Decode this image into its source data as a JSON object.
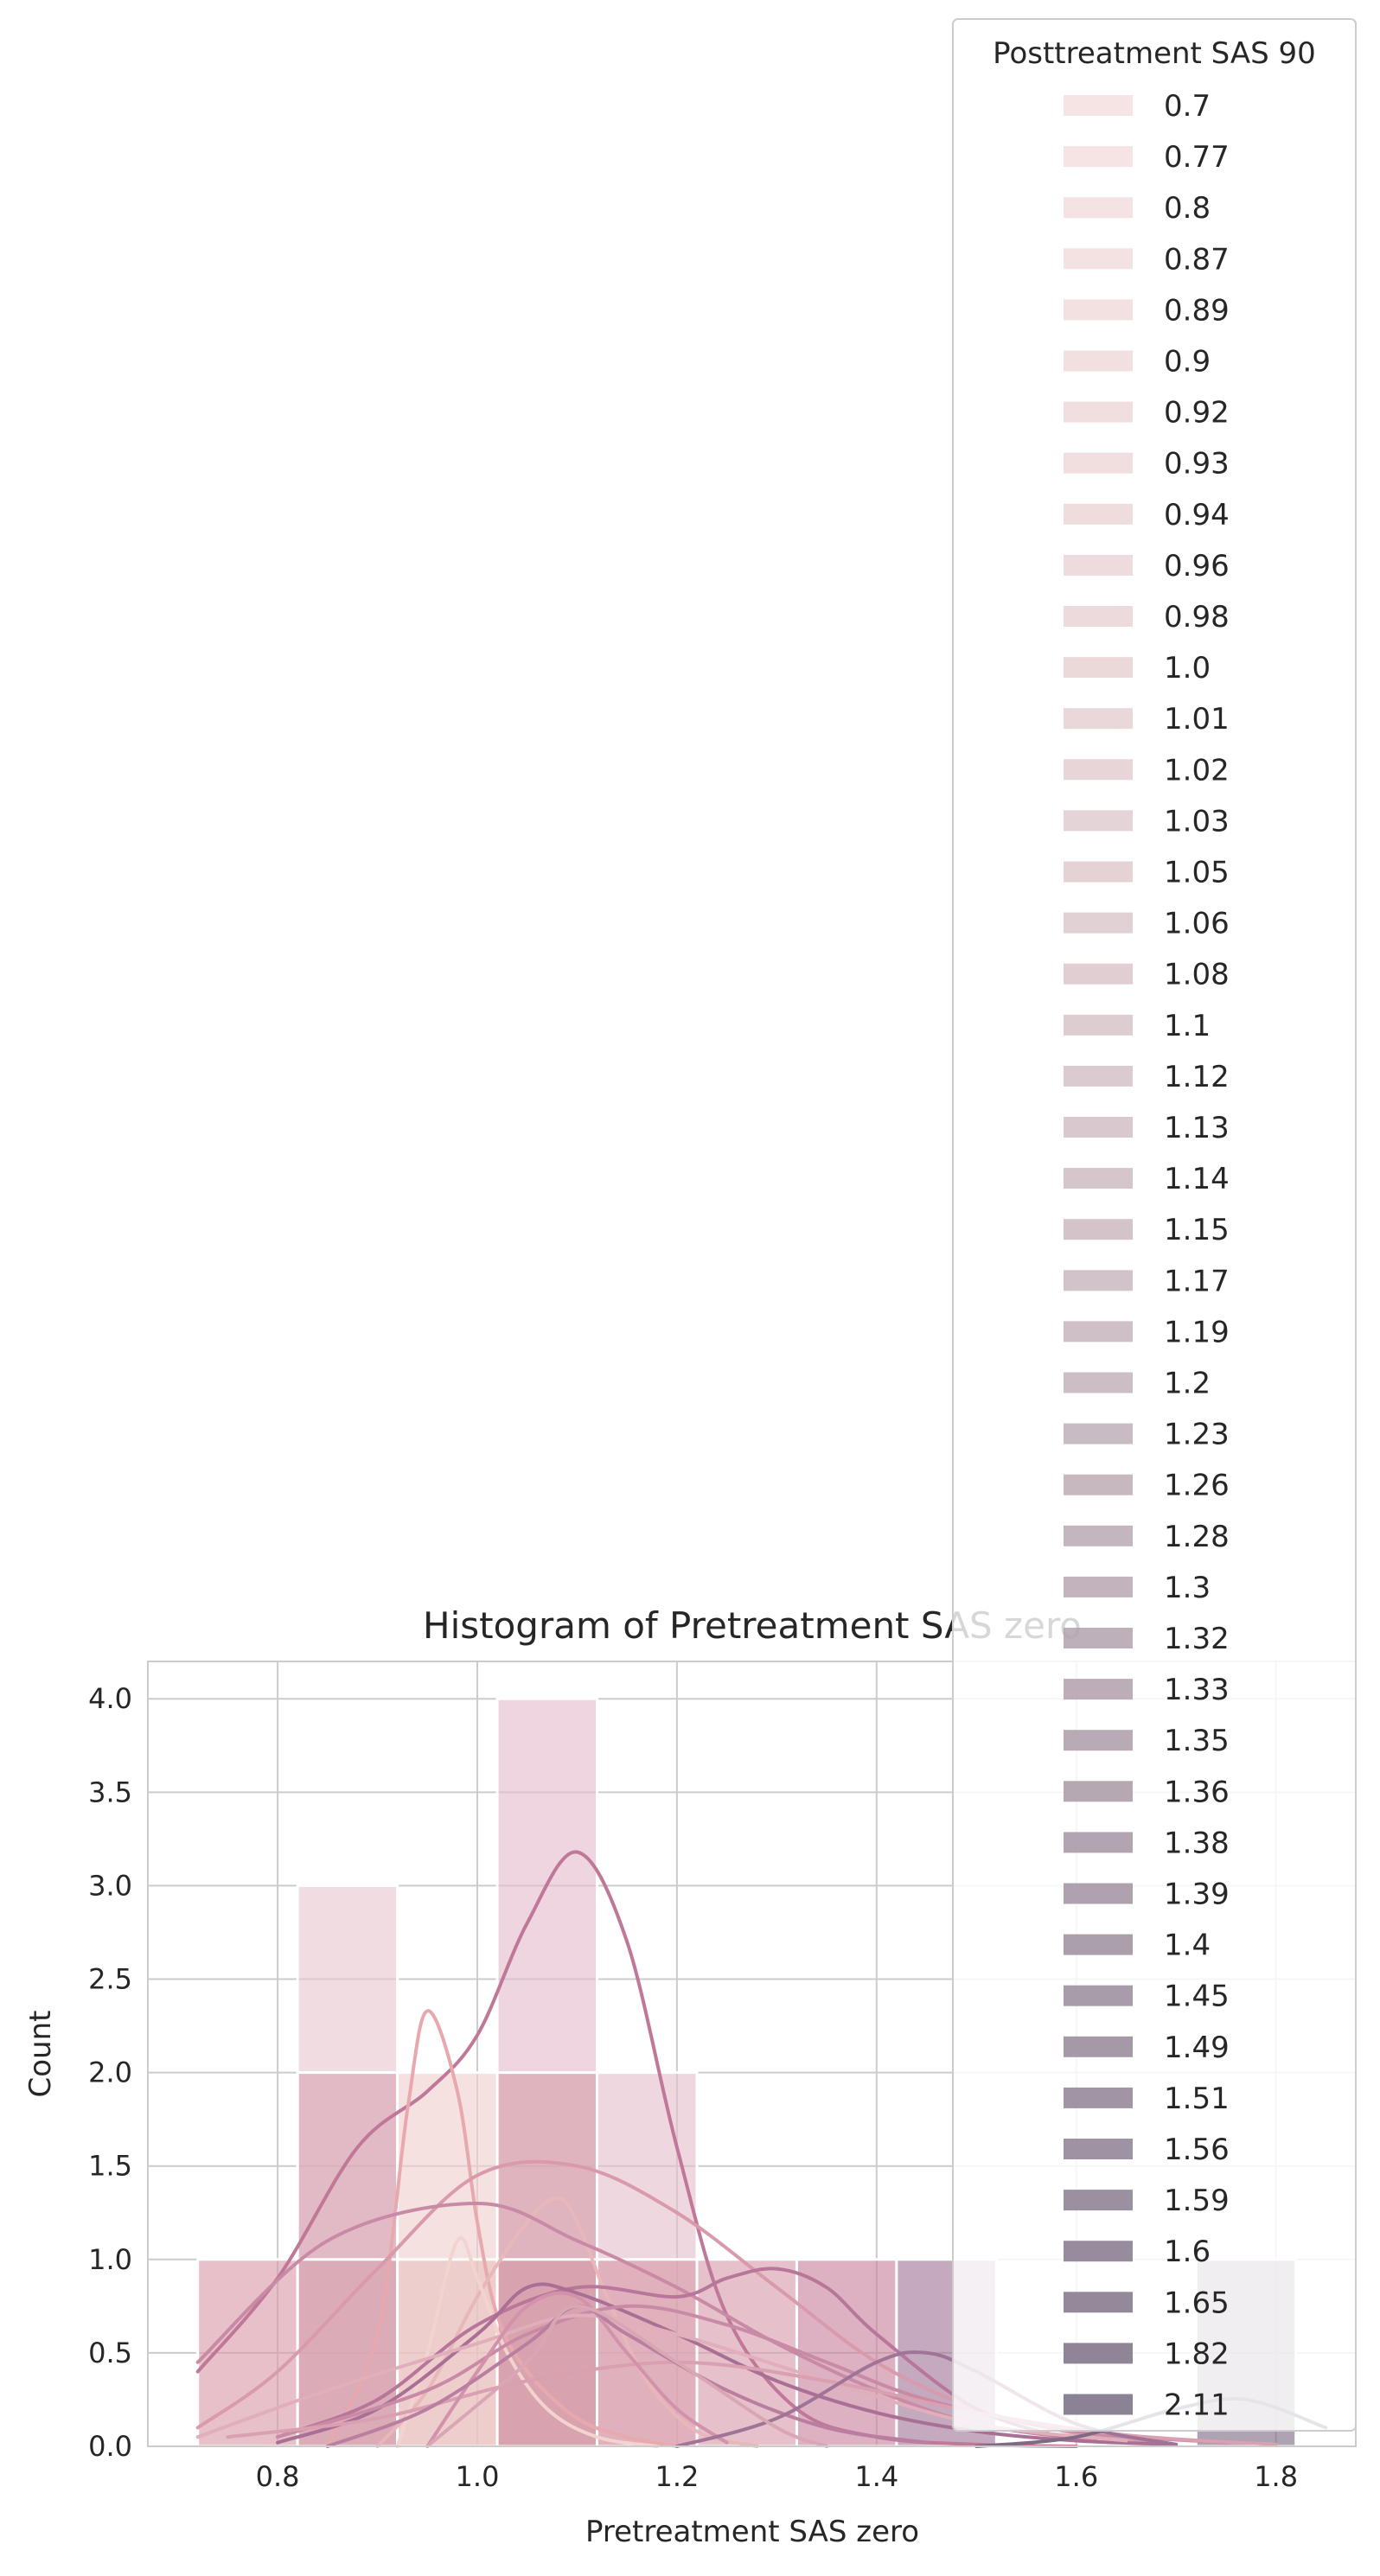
{
  "chart_data": {
    "type": "bar",
    "title": "Histogram of Pretreatment SAS zero",
    "xlabel": "Pretreatment SAS zero",
    "ylabel": "Count",
    "xlim": [
      0.67,
      1.88
    ],
    "ylim": [
      0,
      4.2
    ],
    "x_ticks": [
      "0.8",
      "1.0",
      "1.2",
      "1.4",
      "1.6",
      "1.8"
    ],
    "y_ticks": [
      "0.0",
      "0.5",
      "1.0",
      "1.5",
      "2.0",
      "2.5",
      "3.0",
      "3.5",
      "4.0"
    ],
    "grid": true,
    "legend": {
      "title": "Posttreatment SAS 90",
      "placement": "upper-right",
      "entries": [
        "0.7",
        "0.77",
        "0.8",
        "0.87",
        "0.89",
        "0.9",
        "0.92",
        "0.93",
        "0.94",
        "0.96",
        "0.98",
        "1.0",
        "1.01",
        "1.02",
        "1.03",
        "1.05",
        "1.06",
        "1.08",
        "1.1",
        "1.12",
        "1.13",
        "1.14",
        "1.15",
        "1.17",
        "1.19",
        "1.2",
        "1.23",
        "1.26",
        "1.28",
        "1.3",
        "1.32",
        "1.33",
        "1.35",
        "1.36",
        "1.38",
        "1.39",
        "1.4",
        "1.45",
        "1.49",
        "1.51",
        "1.56",
        "1.59",
        "1.6",
        "1.65",
        "1.82",
        "2.11"
      ]
    },
    "bars": [
      {
        "x0": 0.72,
        "x1": 0.82,
        "count": 1,
        "color": "#d89aa8"
      },
      {
        "x0": 0.82,
        "x1": 0.92,
        "count": 3,
        "color": "#e8c6cf"
      },
      {
        "x0": 0.82,
        "x1": 0.92,
        "count": 2,
        "color": "#d8a4b5"
      },
      {
        "x0": 0.82,
        "x1": 0.92,
        "count": 1,
        "color": "#d7a1ae"
      },
      {
        "x0": 0.92,
        "x1": 1.02,
        "count": 2,
        "color": "#f0cfcf"
      },
      {
        "x0": 0.92,
        "x1": 1.02,
        "count": 1,
        "color": "#e8c0c0"
      },
      {
        "x0": 1.02,
        "x1": 1.12,
        "count": 4,
        "color": "#e3bccb"
      },
      {
        "x0": 1.02,
        "x1": 1.12,
        "count": 2,
        "color": "#d7a0aa"
      },
      {
        "x0": 1.02,
        "x1": 1.12,
        "count": 1,
        "color": "#d49aa6"
      },
      {
        "x0": 1.12,
        "x1": 1.22,
        "count": 2,
        "color": "#e3bfcb"
      },
      {
        "x0": 1.12,
        "x1": 1.22,
        "count": 1,
        "color": "#d69aa8"
      },
      {
        "x0": 1.22,
        "x1": 1.32,
        "count": 1,
        "color": "#d79aa9"
      },
      {
        "x0": 1.32,
        "x1": 1.42,
        "count": 1,
        "color": "#c8809d"
      },
      {
        "x0": 1.42,
        "x1": 1.52,
        "count": 1,
        "color": "#9f7497"
      },
      {
        "x0": 1.72,
        "x1": 1.82,
        "count": 1,
        "color": "#7d6b84"
      }
    ],
    "kde_curves": [
      {
        "color": "#c07898",
        "x": [
          0.72,
          0.8,
          0.88,
          0.95,
          1.0,
          1.05,
          1.1,
          1.15,
          1.2,
          1.25,
          1.32,
          1.4,
          1.5,
          1.6
        ],
        "y": [
          0.4,
          0.9,
          1.6,
          1.9,
          2.2,
          2.8,
          3.18,
          2.7,
          1.6,
          0.7,
          0.2,
          0.05,
          0.01,
          0
        ]
      },
      {
        "color": "#e7a9ad",
        "x": [
          0.85,
          0.9,
          0.93,
          0.95,
          0.98,
          1.0,
          1.02,
          1.05,
          1.1,
          1.15,
          1.2
        ],
        "y": [
          0,
          0.6,
          1.8,
          2.33,
          1.9,
          1.2,
          0.7,
          0.4,
          0.15,
          0.05,
          0
        ]
      },
      {
        "color": "#e7b7ba",
        "x": [
          0.9,
          0.95,
          1.0,
          1.05,
          1.08,
          1.1,
          1.13,
          1.17,
          1.22,
          1.28
        ],
        "y": [
          0,
          0.3,
          0.8,
          1.2,
          1.33,
          1.2,
          0.8,
          0.35,
          0.08,
          0
        ]
      },
      {
        "color": "#f2d3d0",
        "x": [
          0.92,
          0.95,
          0.98,
          1.0,
          1.03,
          1.07,
          1.12,
          1.18
        ],
        "y": [
          0,
          0.5,
          1.1,
          0.9,
          0.5,
          0.2,
          0.05,
          0
        ]
      },
      {
        "color": "#d99aac",
        "x": [
          0.72,
          0.8,
          0.9,
          1.0,
          1.1,
          1.2,
          1.3,
          1.4,
          1.5,
          1.6,
          1.7
        ],
        "y": [
          0.1,
          0.4,
          0.95,
          1.45,
          1.5,
          1.25,
          0.85,
          0.45,
          0.2,
          0.07,
          0.01
        ]
      },
      {
        "color": "#c98aa5",
        "x": [
          0.72,
          0.85,
          1.0,
          1.1,
          1.2,
          1.3,
          1.4,
          1.5,
          1.62
        ],
        "y": [
          0.45,
          1.1,
          1.3,
          1.1,
          0.85,
          0.55,
          0.3,
          0.12,
          0.03
        ]
      },
      {
        "color": "#b8779a",
        "x": [
          0.8,
          0.9,
          1.0,
          1.1,
          1.2,
          1.25,
          1.3,
          1.35,
          1.4,
          1.5,
          1.6
        ],
        "y": [
          0.05,
          0.25,
          0.65,
          0.85,
          0.8,
          0.9,
          0.95,
          0.85,
          0.6,
          0.2,
          0.03
        ]
      },
      {
        "color": "#a96f94",
        "x": [
          0.8,
          0.9,
          1.0,
          1.05,
          1.1,
          1.2,
          1.3,
          1.4,
          1.5,
          1.6,
          1.7
        ],
        "y": [
          0.02,
          0.2,
          0.6,
          0.85,
          0.82,
          0.6,
          0.35,
          0.18,
          0.08,
          0.03,
          0.01
        ]
      },
      {
        "color": "#c98aa5",
        "x": [
          0.8,
          0.95,
          1.05,
          1.15,
          1.25,
          1.35,
          1.45,
          1.6,
          1.75
        ],
        "y": [
          0.05,
          0.3,
          0.6,
          0.75,
          0.65,
          0.45,
          0.25,
          0.08,
          0.02
        ]
      },
      {
        "color": "#e1aebb",
        "x": [
          0.72,
          0.85,
          1.0,
          1.1,
          1.2,
          1.35,
          1.5,
          1.65
        ],
        "y": [
          0.05,
          0.3,
          0.55,
          0.7,
          0.6,
          0.35,
          0.12,
          0.03
        ]
      },
      {
        "color": "#d8a0b1",
        "x": [
          0.75,
          0.9,
          1.05,
          1.2,
          1.35,
          1.5,
          1.65,
          1.8
        ],
        "y": [
          0.05,
          0.15,
          0.35,
          0.45,
          0.35,
          0.18,
          0.06,
          0.01
        ]
      },
      {
        "color": "#d292ab",
        "x": [
          0.95,
          1.0,
          1.05,
          1.1,
          1.15,
          1.2,
          1.25
        ],
        "y": [
          0,
          0.4,
          0.75,
          0.8,
          0.5,
          0.2,
          0.02
        ]
      },
      {
        "color": "#b97ea0",
        "x": [
          0.85,
          0.95,
          1.05,
          1.1,
          1.15,
          1.25,
          1.35,
          1.45
        ],
        "y": [
          0,
          0.2,
          0.55,
          0.75,
          0.6,
          0.3,
          0.1,
          0.02
        ]
      },
      {
        "color": "#9f7497",
        "x": [
          1.2,
          1.3,
          1.4,
          1.45,
          1.5,
          1.6,
          1.7
        ],
        "y": [
          0,
          0.15,
          0.45,
          0.5,
          0.4,
          0.12,
          0.01
        ]
      },
      {
        "color": "#7d6b84",
        "x": [
          1.5,
          1.6,
          1.7,
          1.77,
          1.85
        ],
        "y": [
          0,
          0.05,
          0.2,
          0.25,
          0.1
        ]
      },
      {
        "color": "#d9a6b4",
        "x": [
          0.95,
          1.05,
          1.1,
          1.2,
          1.3,
          1.35
        ],
        "y": [
          0,
          0.45,
          0.75,
          0.45,
          0.1,
          0
        ]
      }
    ]
  }
}
